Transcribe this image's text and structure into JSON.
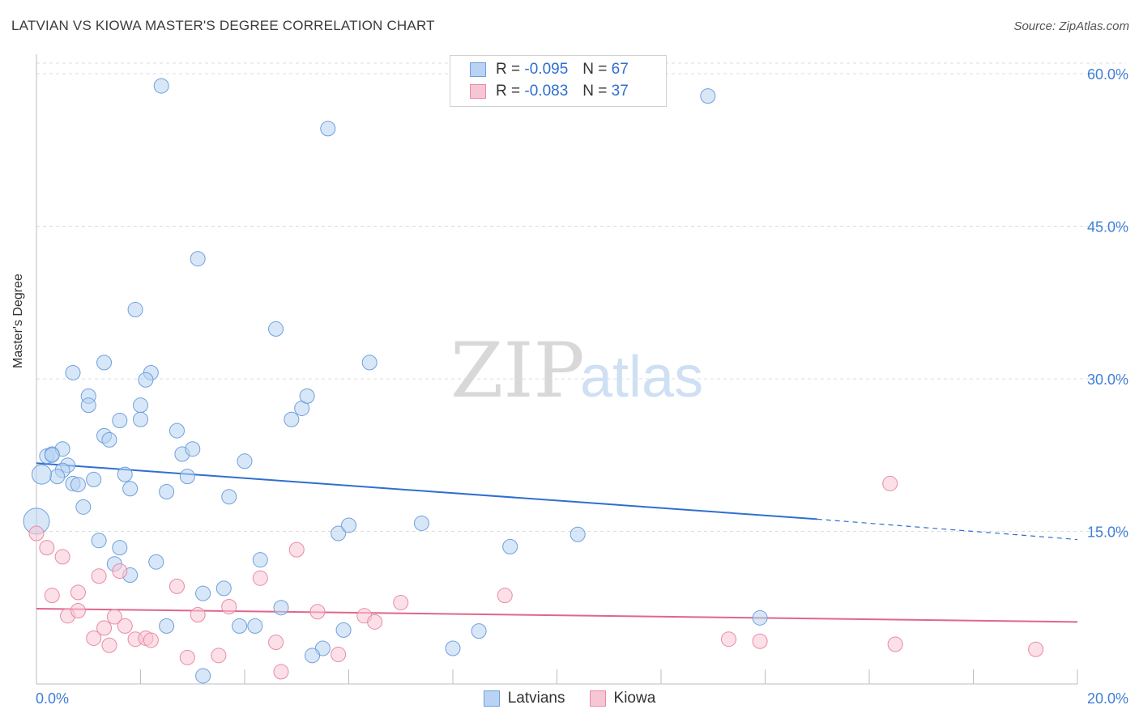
{
  "title": "LATVIAN VS KIOWA MASTER'S DEGREE CORRELATION CHART",
  "source": "Source: ZipAtlas.com",
  "watermark": {
    "zip": "ZIP",
    "atlas": "atlas"
  },
  "legend": {
    "rows": [
      {
        "r_label": "R =",
        "r_value": "-0.095",
        "n_label": "N =",
        "n_value": "67",
        "fill": "#b8d3f3",
        "stroke": "#6fa0dc"
      },
      {
        "r_label": "R =",
        "r_value": "-0.083",
        "n_label": "N =",
        "n_value": "37",
        "fill": "#f7c6d4",
        "stroke": "#e98aa6"
      }
    ]
  },
  "chart_data": {
    "type": "scatter",
    "ylabel": "Master's Degree",
    "xlim": [
      0,
      20
    ],
    "ylim": [
      0,
      60
    ],
    "x_ticks": [
      "0.0%",
      "20.0%"
    ],
    "y_ticks": [
      {
        "value": 15,
        "label": "15.0%"
      },
      {
        "value": 30,
        "label": "30.0%"
      },
      {
        "value": 45,
        "label": "45.0%"
      },
      {
        "value": 60,
        "label": "60.0%"
      }
    ],
    "grid": true,
    "series": [
      {
        "name": "Latvians",
        "fill": "#b8d3f3",
        "stroke": "#6fa0dc",
        "line_color": "#2f6fd0",
        "trend": {
          "x0": 0,
          "y0": 21.7,
          "x1": 15,
          "y1": 16.2,
          "dashed_to": 20,
          "dashed_y": 14.2
        },
        "points": [
          [
            2.4,
            58.8
          ],
          [
            5.6,
            54.6
          ],
          [
            12.9,
            57.8
          ],
          [
            3.1,
            41.8
          ],
          [
            1.9,
            36.8
          ],
          [
            4.6,
            34.9
          ],
          [
            0.7,
            30.6
          ],
          [
            1.3,
            31.6
          ],
          [
            2.2,
            30.6
          ],
          [
            2.1,
            29.9
          ],
          [
            6.4,
            31.6
          ],
          [
            1.0,
            28.3
          ],
          [
            1.0,
            27.4
          ],
          [
            2.0,
            27.4
          ],
          [
            2.0,
            26.0
          ],
          [
            1.6,
            25.9
          ],
          [
            4.9,
            26.0
          ],
          [
            5.1,
            27.1
          ],
          [
            5.2,
            28.3
          ],
          [
            1.3,
            24.4
          ],
          [
            1.4,
            24.0
          ],
          [
            2.7,
            24.9
          ],
          [
            0.2,
            22.4
          ],
          [
            0.3,
            22.6
          ],
          [
            0.5,
            23.1
          ],
          [
            0.3,
            22.5
          ],
          [
            2.8,
            22.6
          ],
          [
            3.0,
            23.1
          ],
          [
            4.0,
            21.9
          ],
          [
            0.6,
            21.5
          ],
          [
            0.5,
            21.0
          ],
          [
            0.4,
            20.4
          ],
          [
            1.7,
            20.6
          ],
          [
            2.9,
            20.4
          ],
          [
            1.1,
            20.1
          ],
          [
            0.7,
            19.7
          ],
          [
            0.8,
            19.6
          ],
          [
            1.8,
            19.2
          ],
          [
            2.5,
            18.9
          ],
          [
            3.7,
            18.4
          ],
          [
            0.9,
            17.4
          ],
          [
            5.8,
            14.8
          ],
          [
            6.0,
            15.6
          ],
          [
            7.4,
            15.8
          ],
          [
            9.1,
            13.5
          ],
          [
            10.4,
            14.7
          ],
          [
            1.2,
            14.1
          ],
          [
            1.6,
            13.4
          ],
          [
            1.5,
            11.8
          ],
          [
            1.8,
            10.7
          ],
          [
            2.3,
            12.0
          ],
          [
            4.3,
            12.2
          ],
          [
            3.2,
            8.9
          ],
          [
            3.6,
            9.4
          ],
          [
            4.7,
            7.5
          ],
          [
            2.5,
            5.7
          ],
          [
            3.9,
            5.7
          ],
          [
            4.2,
            5.7
          ],
          [
            5.9,
            5.3
          ],
          [
            8.5,
            5.2
          ],
          [
            13.9,
            6.5
          ],
          [
            5.5,
            3.5
          ],
          [
            5.3,
            2.8
          ],
          [
            8.0,
            3.5
          ],
          [
            3.2,
            0.8
          ],
          [
            0.0,
            16.0
          ],
          [
            0.1,
            20.6
          ]
        ]
      },
      {
        "name": "Kiowa",
        "fill": "#f7c6d4",
        "stroke": "#e98aa6",
        "line_color": "#e0668c",
        "trend": {
          "x0": 0,
          "y0": 7.4,
          "x1": 20,
          "y1": 6.1
        },
        "points": [
          [
            0.0,
            14.8
          ],
          [
            0.2,
            13.4
          ],
          [
            0.5,
            12.5
          ],
          [
            0.3,
            8.7
          ],
          [
            0.6,
            6.7
          ],
          [
            0.8,
            7.2
          ],
          [
            0.8,
            9.0
          ],
          [
            1.1,
            4.5
          ],
          [
            1.2,
            10.6
          ],
          [
            1.3,
            5.5
          ],
          [
            1.4,
            3.8
          ],
          [
            1.5,
            6.6
          ],
          [
            1.6,
            11.1
          ],
          [
            1.7,
            5.7
          ],
          [
            1.9,
            4.4
          ],
          [
            2.1,
            4.5
          ],
          [
            2.2,
            4.3
          ],
          [
            2.7,
            9.6
          ],
          [
            2.9,
            2.6
          ],
          [
            3.1,
            6.8
          ],
          [
            3.5,
            2.8
          ],
          [
            3.7,
            7.6
          ],
          [
            4.3,
            10.4
          ],
          [
            4.6,
            4.1
          ],
          [
            4.7,
            1.2
          ],
          [
            5.0,
            13.2
          ],
          [
            5.4,
            7.1
          ],
          [
            5.8,
            2.9
          ],
          [
            6.3,
            6.7
          ],
          [
            6.5,
            6.1
          ],
          [
            7.0,
            8.0
          ],
          [
            9.0,
            8.7
          ],
          [
            13.3,
            4.4
          ],
          [
            13.9,
            4.2
          ],
          [
            16.4,
            19.7
          ],
          [
            16.5,
            3.9
          ],
          [
            19.2,
            3.4
          ]
        ]
      }
    ]
  }
}
